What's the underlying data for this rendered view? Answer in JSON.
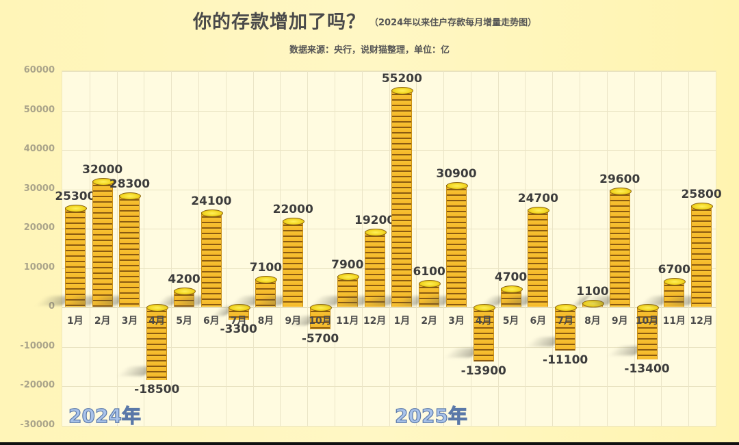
{
  "header": {
    "title": "你的存款增加了吗？",
    "subtitle": "（2024年以来住户存款每月增量走势图）",
    "source": "数据来源：央行，说财猫整理，单位：亿"
  },
  "year_labels": [
    "2024年",
    "2025年"
  ],
  "colors": {
    "background": "#fff5b8",
    "plot_background": "#fffbe0",
    "coin_gold": "#f5b829",
    "coin_stripe": "#8a5a10",
    "coin_top": "#fff05a",
    "year_label": "#a9c3ea"
  },
  "chart_data": {
    "type": "bar",
    "title": "你的存款增加了吗？",
    "subtitle": "（2024年以来住户存款每月增量走势图）",
    "note": "数据来源：央行，说财猫整理，单位：亿",
    "xlabel": "",
    "ylabel": "",
    "ylim": [
      -30000,
      60000
    ],
    "yticks": [
      60000,
      50000,
      40000,
      30000,
      20000,
      10000,
      0,
      -10000,
      -20000,
      -30000
    ],
    "grid": true,
    "legend": "none",
    "categories": [
      "1月",
      "2月",
      "3月",
      "4月",
      "5月",
      "6月",
      "7月",
      "8月",
      "9月",
      "10月",
      "11月",
      "12月",
      "1月",
      "2月",
      "3月",
      "4月",
      "5月",
      "6月",
      "7月",
      "8月",
      "9月",
      "10月",
      "11月",
      "12月"
    ],
    "groups": [
      {
        "name": "2024年",
        "range": [
          0,
          11
        ]
      },
      {
        "name": "2025年",
        "range": [
          12,
          23
        ]
      }
    ],
    "values": [
      25300,
      32000,
      28300,
      -18500,
      4200,
      24100,
      -3300,
      7100,
      22000,
      -5700,
      7900,
      19200,
      55200,
      6100,
      30900,
      -13900,
      4700,
      24700,
      -11100,
      1100,
      29600,
      -13400,
      6700,
      25800
    ],
    "value_labels": [
      "25300",
      "32000",
      "28300",
      "-18500",
      "4200",
      "24100",
      "-3300",
      "7100",
      "22000",
      "-5700",
      "7900",
      "19200",
      "55200",
      "6100",
      "30900",
      "-13900",
      "4700",
      "24700",
      "-11100",
      "1100",
      "29600",
      "-13400",
      "6700",
      "25800"
    ]
  }
}
